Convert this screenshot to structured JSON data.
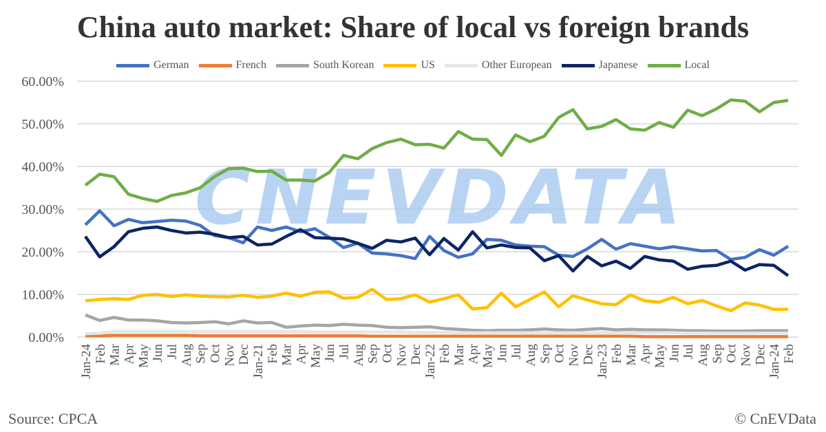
{
  "chart_data": {
    "type": "line",
    "title": "China auto market: Share of local vs foreign brands",
    "source": "Source: CPCA",
    "copyright": "© CnEVData",
    "watermark": "CNEVDATA",
    "xlabel": "",
    "ylabel": "",
    "ylim": [
      0,
      60
    ],
    "yticks": [
      "0.00%",
      "10.00%",
      "20.00%",
      "30.00%",
      "40.00%",
      "50.00%",
      "60.00%"
    ],
    "grid": true,
    "legend_position": "top",
    "categories": [
      "Jan-24",
      "Feb",
      "Mar",
      "Apr",
      "May",
      "Jun",
      "Jul",
      "Aug",
      "Sep",
      "Oct",
      "Nov",
      "Dec",
      "Jan-21",
      "Feb",
      "Mar",
      "Apr",
      "May",
      "Jun",
      "Jul",
      "Aug",
      "Sep",
      "Oct",
      "Nov",
      "Dec",
      "Jan-22",
      "Feb",
      "Mar",
      "Apr",
      "May",
      "Jun",
      "Jul",
      "Aug",
      "Sep",
      "Oct",
      "Nov",
      "Dec",
      "Jan-23",
      "Feb",
      "Mar",
      "Apr",
      "May",
      "Jun",
      "Jul",
      "Aug",
      "Sep",
      "Oct",
      "Nov",
      "Dec",
      "Jan-24",
      "Feb"
    ],
    "series": [
      {
        "name": "German",
        "color": "#4472C4",
        "values": [
          26.3,
          29.6,
          26.1,
          27.6,
          26.8,
          27.1,
          27.4,
          27.2,
          26.2,
          23.8,
          23.3,
          22.1,
          25.8,
          25,
          25.8,
          24.7,
          25.4,
          23.4,
          21,
          22,
          19.7,
          19.5,
          19.1,
          18.4,
          23.6,
          20.3,
          18.7,
          19.5,
          22.9,
          22.7,
          21.6,
          21.3,
          21.2,
          19.2,
          18.9,
          20.7,
          22.9,
          20.6,
          21.9,
          21.3,
          20.7,
          21.2,
          20.7,
          20.2,
          20.3,
          18.2,
          18.7,
          20.5,
          19.2,
          21.3
        ]
      },
      {
        "name": "French",
        "color": "#ED7D31",
        "values": [
          0.3,
          0.3,
          0.4,
          0.4,
          0.4,
          0.4,
          0.4,
          0.4,
          0.3,
          0.3,
          0.3,
          0.3,
          0.3,
          0.3,
          0.3,
          0.3,
          0.3,
          0.3,
          0.3,
          0.3,
          0.2,
          0.2,
          0.2,
          0.2,
          0.2,
          0.2,
          0.2,
          0.2,
          0.2,
          0.2,
          0.2,
          0.2,
          0.2,
          0.2,
          0.2,
          0.2,
          0.2,
          0.2,
          0.2,
          0.1,
          0.1,
          0.1,
          0.1,
          0.1,
          0.1,
          0.1,
          0.1,
          0.1,
          0.1,
          0.1
        ]
      },
      {
        "name": "South Korean",
        "color": "#A5A5A5",
        "values": [
          5.2,
          3.9,
          4.6,
          4,
          4,
          3.8,
          3.4,
          3.3,
          3.4,
          3.6,
          3.1,
          3.8,
          3.3,
          3.4,
          2.3,
          2.6,
          2.8,
          2.7,
          3,
          2.8,
          2.7,
          2.3,
          2.2,
          2.3,
          2.4,
          2,
          1.8,
          1.6,
          1.5,
          1.6,
          1.6,
          1.7,
          1.9,
          1.7,
          1.6,
          1.8,
          2,
          1.7,
          1.8,
          1.7,
          1.7,
          1.6,
          1.5,
          1.5,
          1.4,
          1.4,
          1.4,
          1.5,
          1.5,
          1.5
        ]
      },
      {
        "name": "US",
        "color": "#FFC000",
        "values": [
          8.5,
          8.8,
          9,
          8.8,
          9.8,
          10,
          9.5,
          9.9,
          9.6,
          9.5,
          9.4,
          9.8,
          9.3,
          9.6,
          10.3,
          9.6,
          10.5,
          10.6,
          9.1,
          9.3,
          11.2,
          8.8,
          9,
          9.9,
          8.2,
          9,
          9.9,
          6.6,
          6.9,
          10.3,
          7.1,
          8.8,
          10.6,
          7.1,
          9.7,
          8.7,
          7.8,
          7.6,
          9.9,
          8.5,
          8.2,
          9.3,
          7.8,
          8.6,
          7.3,
          6.2,
          8,
          7.5,
          6.5,
          6.5
        ]
      },
      {
        "name": "Other European",
        "color": "#E7E6E6",
        "values": [
          0.8,
          0.9,
          1.3,
          1.3,
          1.3,
          1.3,
          1.3,
          1.3,
          1.3,
          1.3,
          1.3,
          1.3,
          1.3,
          1.3,
          1.3,
          1.3,
          1.2,
          1.2,
          1.2,
          1.2,
          1.2,
          1.2,
          1.2,
          1.1,
          1.1,
          1.1,
          1,
          1,
          1,
          1,
          1,
          1,
          1,
          1,
          1,
          1,
          1,
          1,
          1,
          1,
          1,
          1,
          0.9,
          0.9,
          0.9,
          0.9,
          0.9,
          0.9,
          0.9,
          0.9
        ]
      },
      {
        "name": "Japanese",
        "color": "#0D2463",
        "values": [
          23.6,
          18.8,
          21.2,
          24.7,
          25.5,
          25.8,
          25,
          24.4,
          24.6,
          24.1,
          23.3,
          23.6,
          21.6,
          21.8,
          23.6,
          25.2,
          23.3,
          23.2,
          23,
          22,
          20.8,
          22.7,
          22.3,
          23.2,
          19.3,
          23.1,
          20.4,
          24.7,
          20.9,
          21.6,
          21,
          20.9,
          17.9,
          19.1,
          15.5,
          18.9,
          16.7,
          17.8,
          16.1,
          18.9,
          18.1,
          17.8,
          15.9,
          16.6,
          16.8,
          17.8,
          15.7,
          17,
          16.8,
          14.4
        ]
      },
      {
        "name": "Local",
        "color": "#70AD47",
        "values": [
          35.6,
          38.2,
          37.6,
          33.5,
          32.5,
          31.8,
          33.2,
          33.8,
          35,
          37.6,
          39.5,
          39.6,
          38.8,
          38.9,
          36.8,
          36.8,
          36.6,
          38.6,
          42.6,
          41.8,
          44.2,
          45.6,
          46.4,
          45.1,
          45.2,
          44.3,
          48.2,
          46.4,
          46.3,
          42.6,
          47.4,
          45.8,
          47.1,
          51.5,
          53.3,
          48.8,
          49.4,
          51,
          48.8,
          48.5,
          50.3,
          49.2,
          53.2,
          51.9,
          53.5,
          55.6,
          55.3,
          52.8,
          55,
          55.5
        ]
      }
    ]
  }
}
